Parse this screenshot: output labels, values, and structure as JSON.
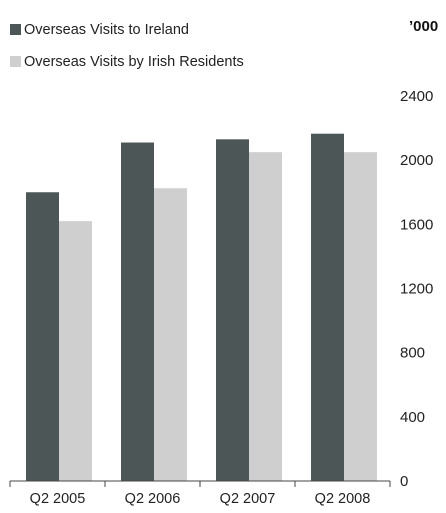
{
  "chart_data": {
    "type": "bar",
    "unit_label": "’000",
    "categories": [
      "Q2 2005",
      "Q2 2006",
      "Q2 2007",
      "Q2 2008"
    ],
    "series": [
      {
        "name": "Overseas Visits to Ireland",
        "color": "#4d5656",
        "values": [
          1800,
          2110,
          2130,
          2165
        ]
      },
      {
        "name": "Overseas Visits by Irish Residents",
        "color": "#cfcfcf",
        "values": [
          1620,
          1825,
          2050,
          2050
        ]
      }
    ],
    "y_ticks": [
      "0",
      "400",
      "800",
      "1200",
      "1600",
      "2000",
      "2400"
    ],
    "ylim": [
      0,
      2400
    ],
    "grid": false,
    "legend_position": "top-left",
    "y_axis_side": "right"
  }
}
